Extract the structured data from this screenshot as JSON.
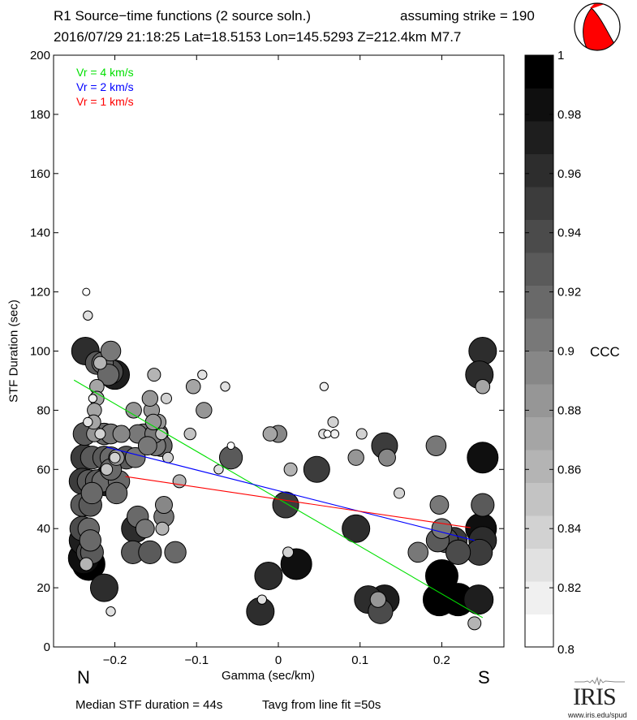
{
  "header": {
    "title_line1": "R1 Source−time functions (2 source soln.)",
    "strike_label": "assuming strike = 190",
    "title_line2": "2016/07/29 21:18:25  Lat=18.5153 Lon=145.5293  Z=212.4km  M7.7"
  },
  "beachball": {
    "fill_color": "#ff0000",
    "icon": "focal-mechanism-beachball"
  },
  "footer": {
    "median_text": "Median STF duration = 44s",
    "tavg_text": "Tavg from line fit =50s",
    "logo_text": "IRIS",
    "logo_url_text": "www.iris.edu/spud"
  },
  "chart_data": {
    "type": "scatter",
    "title": "R1 Source−time functions (2 source soln.)",
    "xlabel": "Gamma (sec/km)",
    "ylabel": "STF Duration (sec)",
    "xlim": [
      -0.275,
      0.276
    ],
    "ylim": [
      0,
      200
    ],
    "xticks": [
      -0.2,
      -0.1,
      0,
      0.1,
      0.2
    ],
    "xtick_labels": [
      "−0.2",
      "−0.1",
      "0",
      "0.1",
      "0.2"
    ],
    "yticks": [
      0,
      20,
      40,
      60,
      80,
      100,
      120,
      140,
      160,
      180,
      200
    ],
    "ytick_labels": [
      "0",
      "20",
      "40",
      "60",
      "80",
      "100",
      "120",
      "140",
      "160",
      "180",
      "200"
    ],
    "direction_labels": {
      "left": "N",
      "right": "S"
    },
    "grid": false,
    "legend": {
      "placement": "top-left",
      "entries": [
        {
          "label": "Vr = 4 km/s",
          "color": "#00e000"
        },
        {
          "label": "Vr = 2 km/s",
          "color": "#0000ff"
        },
        {
          "label": "Vr = 1 km/s",
          "color": "#ff0000"
        }
      ]
    },
    "fit_lines": [
      {
        "name": "Vr = 4 km/s",
        "color": "#00e000",
        "x": [
          -0.25,
          0.25
        ],
        "y": [
          90.2,
          9.9
        ]
      },
      {
        "name": "Vr = 2 km/s",
        "color": "#0000ff",
        "x": [
          -0.21,
          0.24
        ],
        "y": [
          67.5,
          36.0
        ]
      },
      {
        "name": "Vr = 1 km/s",
        "color": "#ff0000",
        "x": [
          -0.187,
          0.235
        ],
        "y": [
          57.6,
          40.3
        ]
      }
    ],
    "colorbar": {
      "label": "CCC",
      "range": [
        0.8,
        1.0
      ],
      "ticks": [
        0.8,
        0.82,
        0.84,
        0.86,
        0.88,
        0.9,
        0.92,
        0.94,
        0.96,
        0.98,
        1
      ],
      "tick_labels": [
        "0.8",
        "0.82",
        "0.84",
        "0.86",
        "0.88",
        "0.9",
        "0.92",
        "0.94",
        "0.96",
        "0.98",
        "1"
      ],
      "bands": 18
    },
    "size_note": "marker size scales with CCC",
    "points": [
      {
        "x": -0.235,
        "y": 120,
        "c": 0.81
      },
      {
        "x": -0.233,
        "y": 112,
        "c": 0.83
      },
      {
        "x": -0.236,
        "y": 100,
        "c": 0.96
      },
      {
        "x": -0.205,
        "y": 100,
        "c": 0.91
      },
      {
        "x": -0.222,
        "y": 96,
        "c": 0.93
      },
      {
        "x": -0.215,
        "y": 96,
        "c": 0.92
      },
      {
        "x": -0.218,
        "y": 96,
        "c": 0.86
      },
      {
        "x": -0.205,
        "y": 93,
        "c": 0.94
      },
      {
        "x": -0.2,
        "y": 92,
        "c": 0.97
      },
      {
        "x": -0.208,
        "y": 92,
        "c": 0.92
      },
      {
        "x": -0.222,
        "y": 88,
        "c": 0.87
      },
      {
        "x": -0.227,
        "y": 84,
        "c": 0.82
      },
      {
        "x": -0.222,
        "y": 84,
        "c": 0.87
      },
      {
        "x": -0.225,
        "y": 80,
        "c": 0.87
      },
      {
        "x": -0.233,
        "y": 76,
        "c": 0.83
      },
      {
        "x": -0.226,
        "y": 76,
        "c": 0.87
      },
      {
        "x": -0.237,
        "y": 72,
        "c": 0.93
      },
      {
        "x": -0.225,
        "y": 72,
        "c": 0.88
      },
      {
        "x": -0.213,
        "y": 72,
        "c": 0.92
      },
      {
        "x": -0.218,
        "y": 72,
        "c": 0.84
      },
      {
        "x": -0.205,
        "y": 72,
        "c": 0.91
      },
      {
        "x": -0.192,
        "y": 72,
        "c": 0.89
      },
      {
        "x": -0.172,
        "y": 72,
        "c": 0.9
      },
      {
        "x": -0.165,
        "y": 72,
        "c": 0.91
      },
      {
        "x": -0.152,
        "y": 72,
        "c": 0.9
      },
      {
        "x": -0.148,
        "y": 72,
        "c": 0.92
      },
      {
        "x": -0.143,
        "y": 72,
        "c": 0.85
      },
      {
        "x": -0.147,
        "y": 76,
        "c": 0.88
      },
      {
        "x": -0.155,
        "y": 80,
        "c": 0.88
      },
      {
        "x": -0.153,
        "y": 76,
        "c": 0.88
      },
      {
        "x": -0.177,
        "y": 80,
        "c": 0.88
      },
      {
        "x": -0.157,
        "y": 84,
        "c": 0.88
      },
      {
        "x": -0.137,
        "y": 84,
        "c": 0.84
      },
      {
        "x": -0.152,
        "y": 92,
        "c": 0.86
      },
      {
        "x": -0.104,
        "y": 88,
        "c": 0.87
      },
      {
        "x": -0.093,
        "y": 92,
        "c": 0.83
      },
      {
        "x": -0.091,
        "y": 80,
        "c": 0.88
      },
      {
        "x": -0.108,
        "y": 72,
        "c": 0.85
      },
      {
        "x": -0.065,
        "y": 88,
        "c": 0.83
      },
      {
        "x": -0.058,
        "y": 68,
        "c": 0.81
      },
      {
        "x": -0.058,
        "y": 64,
        "c": 0.93
      },
      {
        "x": -0.073,
        "y": 60,
        "c": 0.83
      },
      {
        "x": -0.238,
        "y": 64,
        "c": 0.95
      },
      {
        "x": -0.228,
        "y": 64,
        "c": 0.93
      },
      {
        "x": -0.213,
        "y": 64,
        "c": 0.93
      },
      {
        "x": -0.205,
        "y": 64,
        "c": 0.92
      },
      {
        "x": -0.198,
        "y": 64,
        "c": 0.88
      },
      {
        "x": -0.2,
        "y": 64,
        "c": 0.84
      },
      {
        "x": -0.186,
        "y": 64,
        "c": 0.93
      },
      {
        "x": -0.175,
        "y": 64,
        "c": 0.91
      },
      {
        "x": -0.16,
        "y": 68,
        "c": 0.9
      },
      {
        "x": -0.15,
        "y": 68,
        "c": 0.91
      },
      {
        "x": -0.143,
        "y": 68,
        "c": 0.92
      },
      {
        "x": -0.135,
        "y": 64,
        "c": 0.84
      },
      {
        "x": -0.24,
        "y": 56,
        "c": 0.95
      },
      {
        "x": -0.232,
        "y": 56,
        "c": 0.93
      },
      {
        "x": -0.222,
        "y": 56,
        "c": 0.93
      },
      {
        "x": -0.215,
        "y": 56,
        "c": 0.92
      },
      {
        "x": -0.21,
        "y": 56,
        "c": 0.97
      },
      {
        "x": -0.2,
        "y": 56,
        "c": 0.93
      },
      {
        "x": -0.195,
        "y": 56,
        "c": 0.92
      },
      {
        "x": -0.205,
        "y": 60,
        "c": 0.92
      },
      {
        "x": -0.198,
        "y": 52,
        "c": 0.92
      },
      {
        "x": -0.21,
        "y": 60,
        "c": 0.85
      },
      {
        "x": -0.121,
        "y": 56,
        "c": 0.86
      },
      {
        "x": -0.24,
        "y": 48,
        "c": 0.93
      },
      {
        "x": -0.23,
        "y": 48,
        "c": 0.93
      },
      {
        "x": -0.228,
        "y": 52,
        "c": 0.92
      },
      {
        "x": -0.24,
        "y": 40,
        "c": 0.94
      },
      {
        "x": -0.238,
        "y": 36,
        "c": 0.97
      },
      {
        "x": -0.232,
        "y": 32,
        "c": 0.94
      },
      {
        "x": -0.238,
        "y": 30,
        "c": 0.98
      },
      {
        "x": -0.232,
        "y": 40,
        "c": 0.92
      },
      {
        "x": -0.23,
        "y": 36,
        "c": 0.92
      },
      {
        "x": -0.228,
        "y": 32,
        "c": 0.93
      },
      {
        "x": -0.232,
        "y": 28,
        "c": 0.99
      },
      {
        "x": -0.235,
        "y": 28,
        "c": 0.86
      },
      {
        "x": -0.172,
        "y": 44,
        "c": 0.92
      },
      {
        "x": -0.175,
        "y": 40,
        "c": 0.96
      },
      {
        "x": -0.163,
        "y": 40,
        "c": 0.9
      },
      {
        "x": -0.178,
        "y": 32,
        "c": 0.93
      },
      {
        "x": -0.157,
        "y": 32,
        "c": 0.93
      },
      {
        "x": -0.14,
        "y": 48,
        "c": 0.89
      },
      {
        "x": -0.14,
        "y": 44,
        "c": 0.91
      },
      {
        "x": -0.142,
        "y": 40,
        "c": 0.86
      },
      {
        "x": -0.126,
        "y": 32,
        "c": 0.92
      },
      {
        "x": -0.213,
        "y": 20,
        "c": 0.96
      },
      {
        "x": -0.205,
        "y": 12,
        "c": 0.83
      },
      {
        "x": -0.01,
        "y": 72,
        "c": 0.87
      },
      {
        "x": 0.0,
        "y": 72,
        "c": 0.89
      },
      {
        "x": 0.015,
        "y": 60,
        "c": 0.86
      },
      {
        "x": 0.047,
        "y": 60,
        "c": 0.95
      },
      {
        "x": 0.055,
        "y": 72,
        "c": 0.83
      },
      {
        "x": 0.06,
        "y": 72,
        "c": 0.81
      },
      {
        "x": 0.067,
        "y": 76,
        "c": 0.84
      },
      {
        "x": 0.069,
        "y": 72,
        "c": 0.82
      },
      {
        "x": 0.056,
        "y": 88,
        "c": 0.82
      },
      {
        "x": 0.095,
        "y": 64,
        "c": 0.88
      },
      {
        "x": 0.102,
        "y": 72,
        "c": 0.84
      },
      {
        "x": 0.13,
        "y": 68,
        "c": 0.95
      },
      {
        "x": 0.133,
        "y": 64,
        "c": 0.89
      },
      {
        "x": 0.148,
        "y": 52,
        "c": 0.84
      },
      {
        "x": 0.193,
        "y": 68,
        "c": 0.91
      },
      {
        "x": 0.009,
        "y": 48,
        "c": 0.95
      },
      {
        "x": 0.095,
        "y": 40,
        "c": 0.96
      },
      {
        "x": 0.012,
        "y": 32,
        "c": 0.84
      },
      {
        "x": 0.022,
        "y": 28,
        "c": 0.98
      },
      {
        "x": -0.012,
        "y": 24,
        "c": 0.96
      },
      {
        "x": -0.02,
        "y": 16,
        "c": 0.83
      },
      {
        "x": -0.022,
        "y": 12,
        "c": 0.96
      },
      {
        "x": 0.11,
        "y": 16,
        "c": 0.96
      },
      {
        "x": 0.13,
        "y": 16,
        "c": 0.97
      },
      {
        "x": 0.125,
        "y": 12,
        "c": 0.94
      },
      {
        "x": 0.122,
        "y": 16,
        "c": 0.88
      },
      {
        "x": 0.171,
        "y": 32,
        "c": 0.91
      },
      {
        "x": 0.197,
        "y": 48,
        "c": 0.9
      },
      {
        "x": 0.2,
        "y": 40,
        "c": 0.91
      },
      {
        "x": 0.195,
        "y": 36,
        "c": 0.93
      },
      {
        "x": 0.205,
        "y": 36,
        "c": 0.94
      },
      {
        "x": 0.215,
        "y": 36,
        "c": 0.95
      },
      {
        "x": 0.22,
        "y": 32,
        "c": 0.94
      },
      {
        "x": 0.2,
        "y": 24,
        "c": 0.99
      },
      {
        "x": 0.197,
        "y": 16,
        "c": 0.99
      },
      {
        "x": 0.22,
        "y": 16,
        "c": 0.99
      },
      {
        "x": 0.245,
        "y": 16,
        "c": 0.97
      },
      {
        "x": 0.24,
        "y": 8,
        "c": 0.86
      },
      {
        "x": 0.25,
        "y": 100,
        "c": 0.96
      },
      {
        "x": 0.25,
        "y": 88,
        "c": 0.87
      },
      {
        "x": 0.246,
        "y": 92,
        "c": 0.96
      },
      {
        "x": 0.25,
        "y": 64,
        "c": 0.98
      },
      {
        "x": 0.25,
        "y": 48,
        "c": 0.93
      },
      {
        "x": 0.248,
        "y": 40,
        "c": 0.98
      },
      {
        "x": 0.25,
        "y": 36,
        "c": 0.96
      },
      {
        "x": 0.246,
        "y": 32,
        "c": 0.95
      }
    ]
  }
}
